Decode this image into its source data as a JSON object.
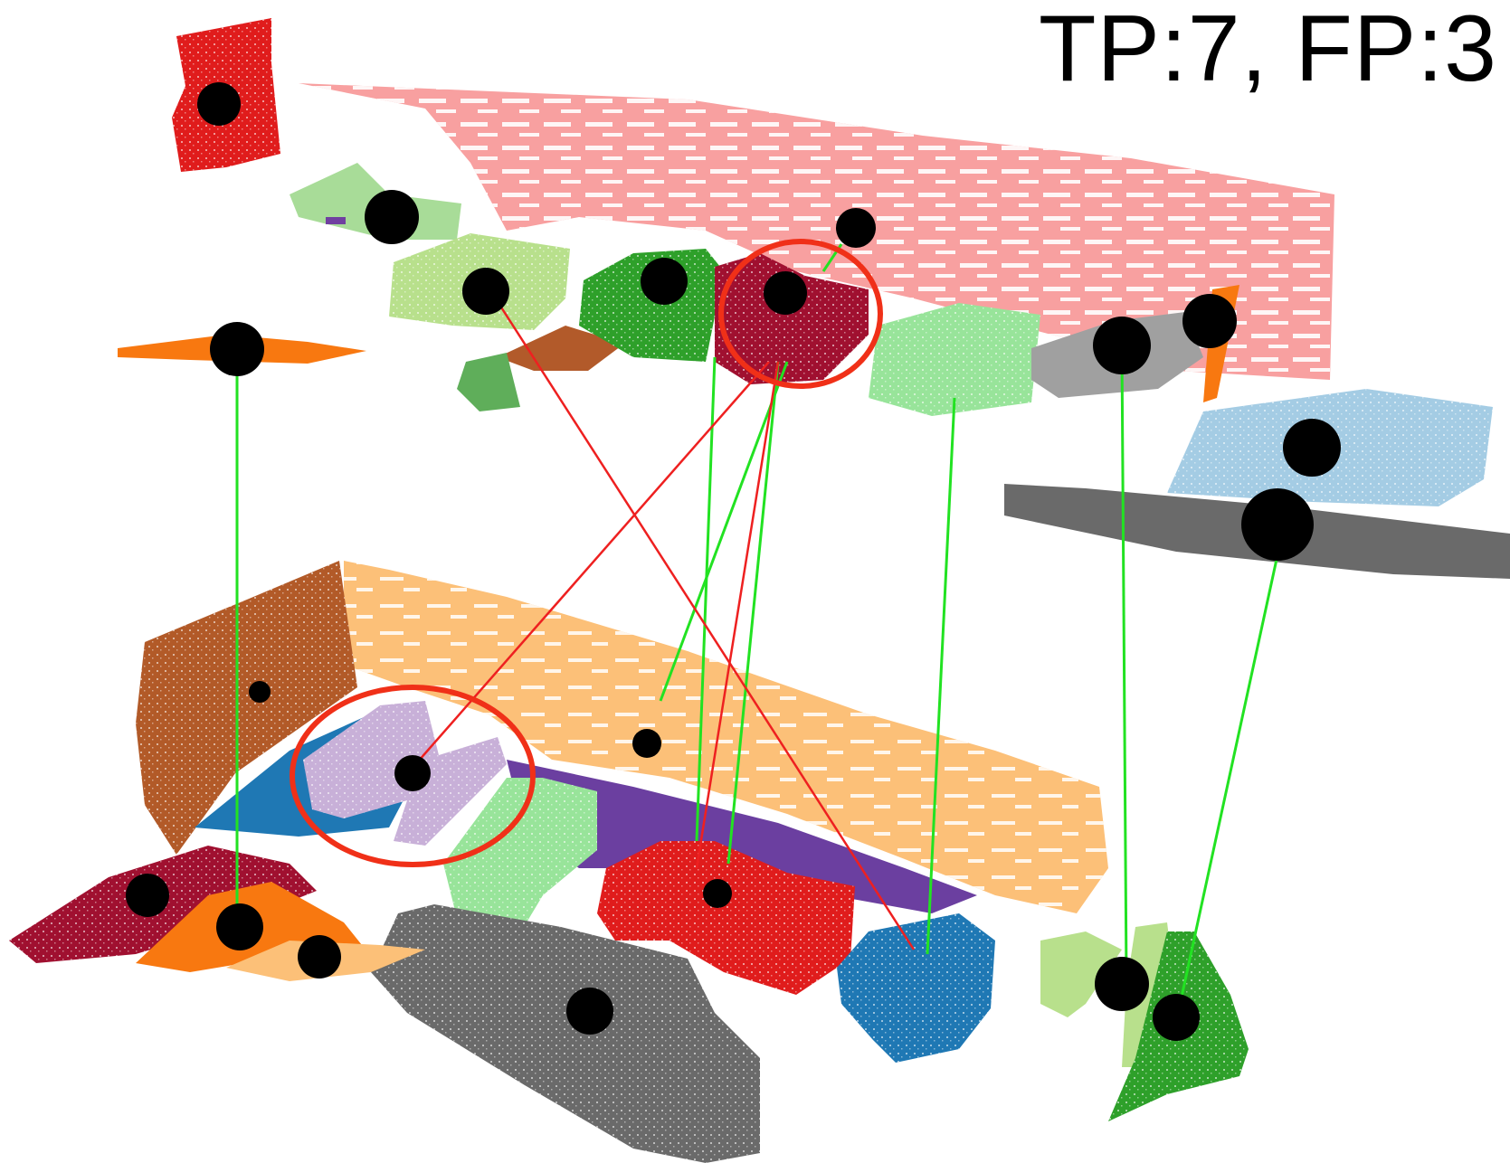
{
  "caption": {
    "text": "TP:7, FP:3"
  },
  "counts": {
    "tp": 7,
    "fp": 3
  },
  "colors": {
    "background": "#ffffff",
    "true_positive_line": "#22e222",
    "false_positive_line": "#ee2020",
    "highlight_ellipse": "#f03018",
    "node": "#000000"
  }
}
